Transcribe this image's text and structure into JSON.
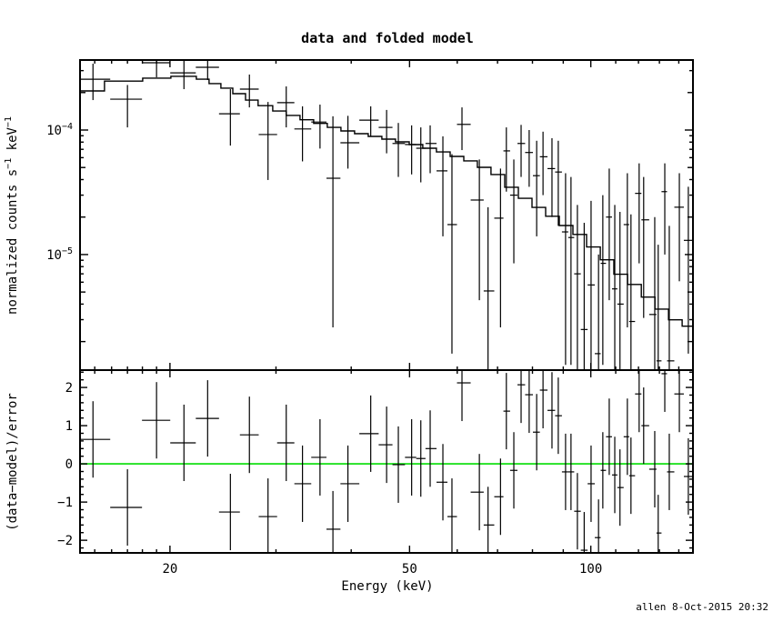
{
  "title": "data and folded model",
  "xlabel": "Energy (keV)",
  "footer": "allen  8-Oct-2015 20:32",
  "colors": {
    "foreground": "#000000",
    "background": "#ffffff",
    "zero_line": "#00DD00"
  },
  "xaxis": {
    "xlim": [
      14.18,
      147.8
    ],
    "scale": "log",
    "major_ticks": [
      {
        "label": "20",
        "value": 20
      },
      {
        "label": "50",
        "value": 50
      },
      {
        "label": "100",
        "value": 100
      }
    ],
    "minor_ticks": [
      15,
      16,
      17,
      18,
      19,
      30,
      40,
      60,
      70,
      80,
      90,
      110,
      120,
      130,
      140
    ]
  },
  "top_panel": {
    "ylabel_parts": [
      {
        "t": "normalized counts s",
        "sup": false
      },
      {
        "t": "−1",
        "sup": true
      },
      {
        "t": " keV",
        "sup": false
      },
      {
        "t": "−1",
        "sup": true
      }
    ],
    "ylim": [
      1.18e-06,
      0.000365
    ],
    "scale": "log",
    "major_ticks": [
      {
        "base": "10",
        "exp": "−4",
        "value": 0.0001
      },
      {
        "base": "10",
        "exp": "−5",
        "value": 1e-05
      }
    ]
  },
  "bottom_panel": {
    "ylabel": "(data−model)/error",
    "ylim": [
      -2.33,
      2.43
    ],
    "scale": "linear",
    "major_ticks": [
      {
        "label": "2",
        "value": 2
      },
      {
        "label": "1",
        "value": 1
      },
      {
        "label": "0",
        "value": 0
      },
      {
        "label": "−1",
        "value": -1
      },
      {
        "label": "−2",
        "value": -2
      }
    ],
    "minor_step": 0.2,
    "residual_error": 1.0
  },
  "chart_data": {
    "type": "scatter",
    "title": "data and folded model",
    "xlabel": "Energy (keV)",
    "ylabel_top": "normalized counts s^-1 keV^-1",
    "ylabel_bottom": "(data-model)/error",
    "x_scale": "log",
    "panels": [
      {
        "name": "spectrum",
        "y_scale": "log",
        "ylim": [
          1.18e-06,
          0.000365
        ],
        "xlim": [
          14.18,
          147.8
        ]
      },
      {
        "name": "residuals",
        "y_scale": "linear",
        "ylim": [
          -2.33,
          2.43
        ],
        "zero_line": true
      }
    ],
    "series": [
      {
        "name": "data",
        "type": "scatter",
        "panel": 0,
        "x": [
          14.9,
          17.0,
          19.0,
          21.1,
          23.1,
          25.2,
          27.1,
          29.1,
          31.2,
          33.2,
          35.5,
          37.3,
          39.5,
          43.1,
          45.8,
          47.9,
          50.4,
          52.2,
          54.1,
          56.8,
          58.8,
          61.1,
          65.3,
          67.5,
          70.8,
          72.4,
          74.5,
          76.6,
          79.0,
          81.3,
          83.3,
          86.2,
          88.3,
          90.8,
          92.7,
          95.0,
          97.5,
          100.1,
          103.0,
          104.7,
          107.3,
          109.6,
          111.8,
          115.0,
          116.6,
          120.3,
          122.4,
          127.7,
          129.4,
          132.7,
          135.0,
          140.3,
          145.2
        ],
        "y": [
          0.000256,
          0.000177,
          0.000347,
          0.000288,
          0.000319,
          0.000135,
          0.000213,
          9.2e-05,
          0.000166,
          0.000102,
          0.000116,
          4.1e-05,
          7.9e-05,
          0.00012,
          0.000105,
          7.8e-05,
          7.65e-05,
          7.14e-05,
          7.8e-05,
          4.7e-05,
          1.74e-05,
          0.000111,
          2.74e-05,
          5.1e-06,
          1.96e-05,
          6.8e-05,
          3e-05,
          7.8e-05,
          6.6e-05,
          4.3e-05,
          6.1e-05,
          4.9e-05,
          4.6e-05,
          1.52e-05,
          1.37e-05,
          7e-06,
          2.5e-06,
          5.7e-06,
          1.6e-06,
          8.5e-06,
          2e-05,
          5.3e-06,
          4e-06,
          1.74e-05,
          2.9e-06,
          3.1e-05,
          1.9e-05,
          3.3e-06,
          1.4e-06,
          3.2e-05,
          1.4e-06,
          2.4e-05,
          1.3e-05
        ],
        "y_err_lo": [
          0.000174,
          0.000105,
          0.000265,
          0.000213,
          0.000252,
          7.5e-05,
          0.000152,
          3.97e-05,
          0.000105,
          5.6e-05,
          7.1e-05,
          2.6e-06,
          4.9e-05,
          8.9e-05,
          6.5e-05,
          4.2e-05,
          4.4e-05,
          3.8e-05,
          4.5e-05,
          1.4e-05,
          1.6e-06,
          6.9e-05,
          4.3e-06,
          1e-06,
          2.6e-06,
          3.2e-05,
          8.5e-06,
          4.2e-05,
          3.5e-05,
          1.4e-05,
          3e-05,
          2e-05,
          1.7e-05,
          1.3e-06,
          1.3e-06,
          9e-07,
          6e-07,
          8e-07,
          5e-07,
          1.3e-06,
          4.3e-06,
          8e-07,
          7e-07,
          2.6e-06,
          6e-07,
          8.5e-06,
          3.1e-06,
          7e-07,
          5e-07,
          1e-05,
          5e-07,
          6.1e-06,
          1.6e-06
        ],
        "y_err_hi": [
          0.000341,
          0.00023,
          0.00043,
          0.000359,
          0.00039,
          0.000213,
          0.000279,
          0.000168,
          0.000224,
          0.000155,
          0.00016,
          0.000129,
          0.00013,
          0.000155,
          0.000145,
          0.000114,
          0.000109,
          0.000105,
          0.000109,
          8.9e-05,
          6.4e-05,
          0.000152,
          5.8e-05,
          2.4e-05,
          4.9e-05,
          0.000105,
          5.8e-05,
          0.00011,
          0.0001,
          8.2e-05,
          9.7e-05,
          8.6e-05,
          8.2e-05,
          4.5e-05,
          4.2e-05,
          2.5e-05,
          1.8e-05,
          2.7e-05,
          1e-05,
          3e-05,
          4.9e-05,
          2.5e-05,
          2.2e-05,
          4.5e-05,
          2.1e-05,
          5.4e-05,
          4.2e-05,
          2e-05,
          1.2e-05,
          5.4e-05,
          1.7e-05,
          4.5e-05,
          3.5e-05
        ]
      },
      {
        "name": "folded model",
        "type": "step",
        "panel": 0,
        "bin_edges": [
          14.18,
          15.57,
          18.02,
          20.07,
          22.12,
          23.23,
          24.3,
          25.43,
          26.7,
          28.02,
          29.63,
          31.21,
          32.89,
          34.65,
          36.51,
          38.46,
          40.52,
          42.69,
          44.98,
          47.39,
          49.93,
          52.6,
          55.42,
          58.39,
          61.52,
          64.8,
          68.28,
          71.94,
          75.8,
          79.87,
          84.14,
          88.65,
          93.4,
          98.4,
          103.7,
          109.2,
          115.1,
          121.3,
          127.8,
          134.6,
          141.8,
          147.8
        ],
        "values": [
          0.000206,
          0.000247,
          0.000261,
          0.00027,
          0.000256,
          0.000236,
          0.000217,
          0.000196,
          0.000174,
          0.000157,
          0.000142,
          0.000131,
          0.000121,
          0.000113,
          0.000105,
          9.83e-05,
          9.35e-05,
          8.89e-05,
          8.45e-05,
          8.03e-05,
          7.64e-05,
          7.14e-05,
          6.67e-05,
          6.14e-05,
          5.65e-05,
          5.02e-05,
          4.39e-05,
          3.47e-05,
          2.83e-05,
          2.39e-05,
          2.03e-05,
          1.71e-05,
          1.45e-05,
          1.15e-05,
          9.08e-06,
          6.94e-06,
          5.75e-06,
          4.55e-06,
          3.65e-06,
          2.99e-06,
          2.66e-06
        ]
      },
      {
        "name": "(data-model)/error",
        "type": "scatter",
        "panel": 1,
        "x_ref": "data",
        "y": [
          0.64,
          -1.14,
          1.14,
          0.55,
          1.19,
          -1.26,
          0.76,
          -1.38,
          0.55,
          -0.52,
          0.17,
          -1.71,
          -0.52,
          0.79,
          0.5,
          -0.02,
          0.17,
          0.14,
          0.4,
          -0.48,
          -1.38,
          2.12,
          -0.74,
          -1.6,
          -0.86,
          1.38,
          -0.17,
          2.07,
          1.81,
          0.83,
          1.93,
          1.4,
          1.26,
          -0.21,
          -0.21,
          -1.24,
          -2.26,
          -0.52,
          -1.93,
          -0.17,
          0.71,
          -0.29,
          -0.62,
          0.71,
          -0.31,
          1.83,
          1.0,
          -0.14,
          -1.81,
          2.36,
          -0.21,
          1.83,
          -0.33
        ],
        "y_err": 1.0
      }
    ]
  }
}
